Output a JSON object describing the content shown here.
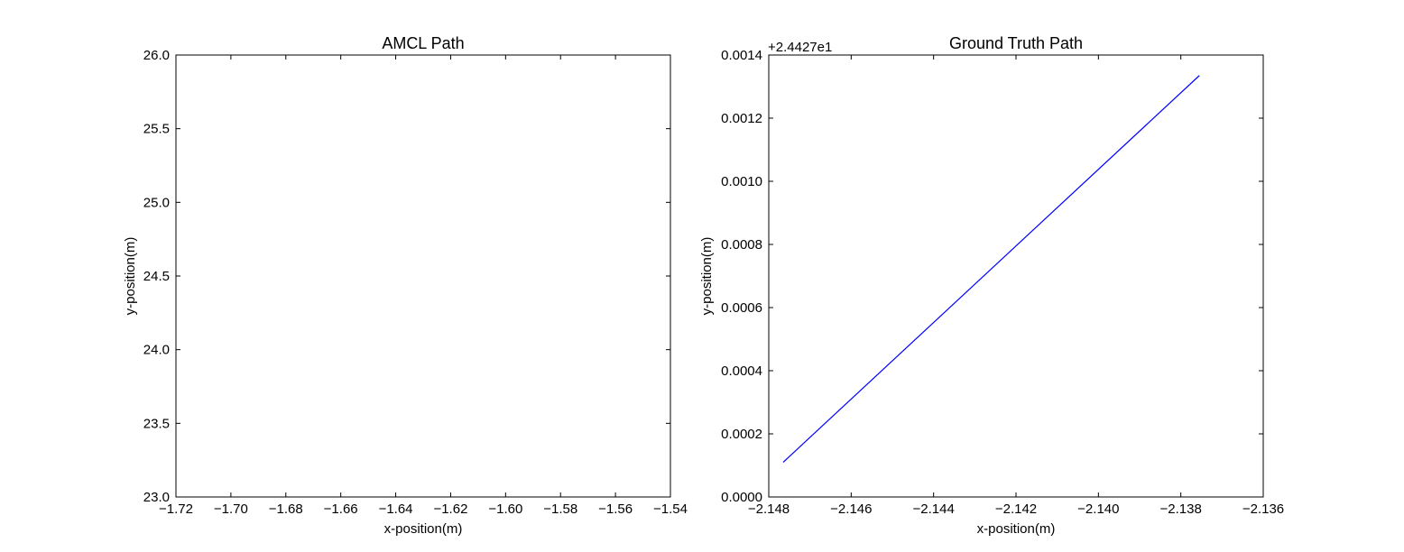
{
  "chart_data": [
    {
      "type": "line",
      "title": "AMCL Path",
      "xlabel": "x-position(m)",
      "ylabel": "y-position(m)",
      "xlim": [
        -1.72,
        -1.54
      ],
      "ylim": [
        23.0,
        26.0
      ],
      "xticks": [
        "−1.72",
        "−1.70",
        "−1.68",
        "−1.66",
        "−1.64",
        "−1.62",
        "−1.60",
        "−1.58",
        "−1.56",
        "−1.54"
      ],
      "yticks": [
        "23.0",
        "23.5",
        "24.0",
        "24.5",
        "25.0",
        "25.5",
        "26.0"
      ],
      "grid": false,
      "series": []
    },
    {
      "type": "line",
      "title": "Ground Truth Path",
      "xlabel": "x-position(m)",
      "ylabel": "y-position(m)",
      "xlim": [
        -2.148,
        -2.136
      ],
      "ylim": [
        0.0,
        0.0014
      ],
      "y_offset_text": "+2.4427e1",
      "xticks": [
        "−2.148",
        "−2.146",
        "−2.144",
        "−2.142",
        "−2.140",
        "−2.138",
        "−2.136"
      ],
      "yticks": [
        "0.0000",
        "0.0002",
        "0.0004",
        "0.0006",
        "0.0008",
        "0.0010",
        "0.0012",
        "0.0014"
      ],
      "grid": false,
      "series": [
        {
          "color": "#0000ff",
          "x": [
            -2.14765,
            -2.13755
          ],
          "y": [
            0.00011,
            0.001335
          ]
        }
      ]
    }
  ]
}
